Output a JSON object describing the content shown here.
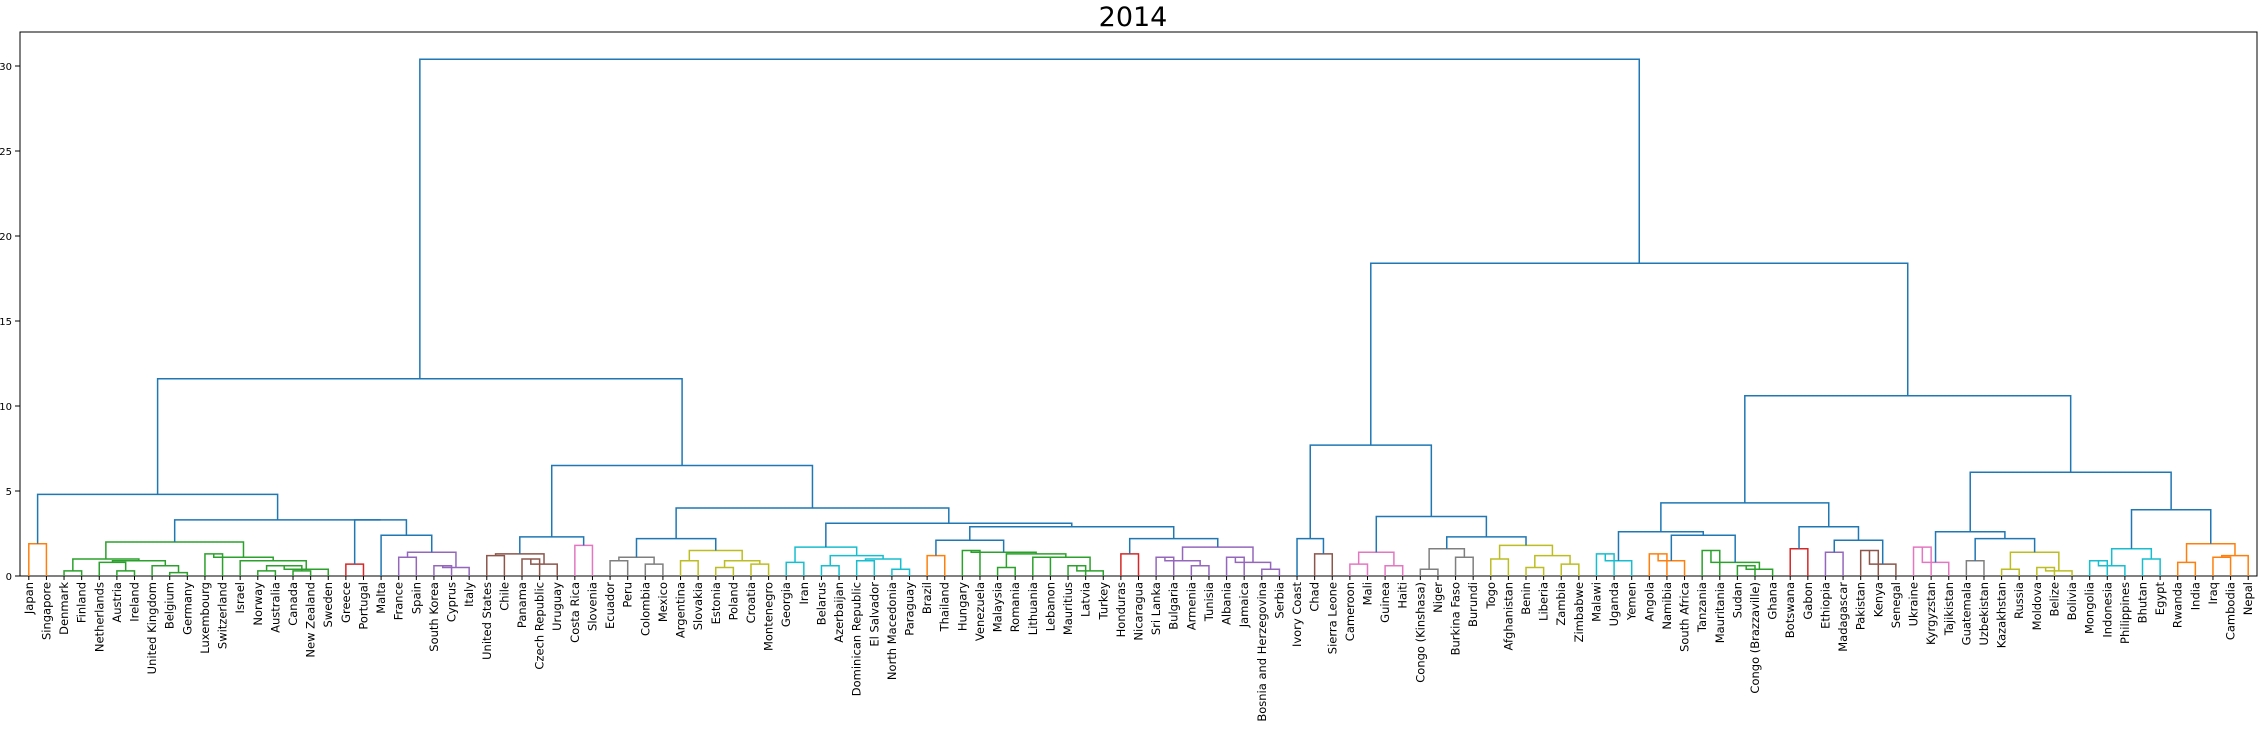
{
  "chart_data": {
    "type": "dendrogram",
    "title": "2014",
    "xlabel": "",
    "ylabel": "",
    "ylim": [
      0,
      32
    ],
    "yticks": [
      0,
      5,
      10,
      15,
      20,
      25,
      30
    ],
    "grid": false,
    "colors": {
      "above_threshold": "#1f77b4",
      "c1": "#ff7f0e",
      "c2": "#2ca02c",
      "c3": "#d62728",
      "c4": "#9467bd",
      "c5": "#8c564b",
      "c6": "#e377c2",
      "c7": "#7f7f7f",
      "c8": "#bcbd22",
      "c9": "#17becf"
    },
    "leaves": [
      "Japan",
      "Singapore",
      "Denmark",
      "Finland",
      "Netherlands",
      "Austria",
      "Ireland",
      "United Kingdom",
      "Belgium",
      "Germany",
      "Luxembourg",
      "Switzerland",
      "Israel",
      "Norway",
      "Australia",
      "Canada",
      "New Zealand",
      "Sweden",
      "Greece",
      "Portugal",
      "Malta",
      "France",
      "Spain",
      "South Korea",
      "Cyprus",
      "Italy",
      "United States",
      "Chile",
      "Panama",
      "Czech Republic",
      "Uruguay",
      "Costa Rica",
      "Slovenia",
      "Ecuador",
      "Peru",
      "Colombia",
      "Mexico",
      "Argentina",
      "Slovakia",
      "Estonia",
      "Poland",
      "Croatia",
      "Montenegro",
      "Georgia",
      "Iran",
      "Belarus",
      "Azerbaijan",
      "Dominican Republic",
      "El Salvador",
      "North Macedonia",
      "Paraguay",
      "Brazil",
      "Thailand",
      "Hungary",
      "Venezuela",
      "Malaysia",
      "Romania",
      "Lithuania",
      "Lebanon",
      "Mauritius",
      "Latvia",
      "Turkey",
      "Honduras",
      "Nicaragua",
      "Sri Lanka",
      "Bulgaria",
      "Armenia",
      "Tunisia",
      "Albania",
      "Jamaica",
      "Bosnia and Herzegovina",
      "Serbia",
      "Ivory Coast",
      "Chad",
      "Sierra Leone",
      "Cameroon",
      "Mali",
      "Guinea",
      "Haiti",
      "Congo (Kinshasa)",
      "Niger",
      "Burkina Faso",
      "Burundi",
      "Togo",
      "Afghanistan",
      "Benin",
      "Liberia",
      "Zambia",
      "Zimbabwe",
      "Malawi",
      "Uganda",
      "Yemen",
      "Angola",
      "Namibia",
      "South Africa",
      "Tanzania",
      "Mauritania",
      "Sudan",
      "Congo (Brazzaville)",
      "Ghana",
      "Botswana",
      "Gabon",
      "Ethiopia",
      "Madagascar",
      "Pakistan",
      "Kenya",
      "Senegal",
      "Ukraine",
      "Kyrgyzstan",
      "Tajikistan",
      "Guatemala",
      "Uzbekistan",
      "Kazakhstan",
      "Russia",
      "Moldova",
      "Belize",
      "Bolivia",
      "Mongolia",
      "Indonesia",
      "Philippines",
      "Bhutan",
      "Egypt",
      "Rwanda",
      "India",
      "Iraq",
      "Cambodia",
      "Nepal"
    ],
    "merges": [
      {
        "l": [
          0
        ],
        "r": [
          1
        ],
        "h": 1.9,
        "c": "c1"
      },
      {
        "l": [
          2
        ],
        "r": [
          3
        ],
        "h": 0.3,
        "c": "c2"
      },
      {
        "l": [
          5
        ],
        "r": [
          6
        ],
        "h": 0.3,
        "c": "c2"
      },
      {
        "l": [
          4
        ],
        "r": "p",
        "h": 0.8,
        "c": "c2"
      },
      {
        "l": [
          8
        ],
        "r": [
          9
        ],
        "h": 0.2,
        "c": "c2"
      },
      {
        "l": [
          7
        ],
        "r": "p",
        "h": 0.6,
        "c": "c2"
      },
      {
        "l": "p-2",
        "r": "p",
        "h": 0.9,
        "c": "c2"
      },
      {
        "l": "p-5",
        "r": "p",
        "h": 1.0,
        "c": "c2"
      },
      {
        "l": [
          10
        ],
        "r": [
          11
        ],
        "h": 1.3,
        "c": "c2"
      },
      {
        "l": [
          13
        ],
        "r": [
          14
        ],
        "h": 0.3,
        "c": "c2"
      },
      {
        "l": [
          15
        ],
        "r": [
          16
        ],
        "h": 0.3,
        "c": "c2"
      },
      {
        "l": "p-1",
        "r": "p",
        "h": 0.6,
        "c": "c2"
      },
      {
        "l": "p",
        "r": [
          17
        ],
        "h": 0.4,
        "c": "c2"
      },
      {
        "l": [
          12
        ],
        "r": "p",
        "h": 0.9,
        "c": "c2"
      },
      {
        "l": "p-5",
        "r": "p",
        "h": 1.1,
        "c": "c2"
      },
      {
        "l": "p-7",
        "r": "p",
        "h": 2.0,
        "c": "c2"
      },
      {
        "l": [
          18
        ],
        "r": [
          19
        ],
        "h": 0.7,
        "c": "c3"
      },
      {
        "l": [
          22
        ],
        "r": [
          23
        ],
        "h": 0.5,
        "c": "c4"
      },
      {
        "l": [
          24
        ],
        "r": [
          25
        ],
        "h": 0.4,
        "c": "c4"
      },
      {
        "l": "p-1",
        "r": "p",
        "h": 1.2,
        "c": "c4"
      },
      {
        "l": [
          21
        ],
        "r": "p",
        "h": 1.4,
        "c": "c4"
      },
      {
        "l": [
          20
        ],
        "r": "p",
        "h": 2.4
      },
      {
        "l": "p-4",
        "r": "p",
        "h": 3.3
      },
      {
        "l": "p-7",
        "r": "p",
        "h": 3.3
      },
      {
        "l": "p-16",
        "r": "p",
        "h": 4.8
      }
    ],
    "links": [
      {
        "x": [
          30,
          30,
          45,
          45
        ],
        "y": [
          0,
          1.9,
          1.9,
          0
        ],
        "c": "c1"
      },
      {
        "x": [
          70,
          70,
          85,
          85
        ],
        "y": [
          0,
          0.3,
          0.3,
          0
        ],
        "c": "c2"
      },
      {
        "x": [
          110,
          110,
          125,
          125
        ],
        "y": [
          0,
          0.3,
          0.3,
          0
        ],
        "c": "c2"
      },
      {
        "x": [
          100,
          100,
          117.5,
          117.5
        ],
        "y": [
          0,
          0.8,
          0.8,
          0.3
        ],
        "c": "c2"
      },
      {
        "x": [
          140,
          140,
          155,
          155
        ],
        "y": [
          0,
          0.2,
          0.2,
          0
        ],
        "c": "c2"
      },
      {
        "x": [
          130,
          130,
          147.5,
          147.5
        ],
        "y": [
          0,
          0.6,
          0.6,
          0.2
        ],
        "c": "c2"
      },
      {
        "x": [
          108.75,
          108.75,
          138.75,
          138.75
        ],
        "y": [
          0.8,
          0.8,
          0.9,
          0.6
        ],
        "c": "c2"
      },
      {
        "x": [
          77.5,
          77.5,
          123.75,
          123.75
        ],
        "y": [
          0.3,
          1.0,
          1.0,
          0.9
        ],
        "c": "c2"
      },
      {
        "x": [
          160,
          160,
          175,
          175
        ],
        "y": [
          0,
          1.3,
          1.3,
          0
        ],
        "c": "c2"
      },
      {
        "x": [
          190,
          190,
          205,
          205
        ],
        "y": [
          0,
          0.3,
          0.3,
          0
        ],
        "c": "c2"
      },
      {
        "x": [
          220,
          220,
          235,
          235
        ],
        "y": [
          0,
          0.3,
          0.3,
          0
        ],
        "c": "c2"
      },
      {
        "x": [
          197.5,
          197.5,
          227.5,
          227.5
        ],
        "y": [
          0.3,
          0.6,
          0.6,
          0.3
        ],
        "c": "c2"
      },
      {
        "x": [
          212.5,
          212.5,
          245,
          245
        ],
        "y": [
          0.6,
          0.4,
          0.4,
          0
        ],
        "c": "c2"
      },
      {
        "x": [
          180,
          180,
          228.75,
          228.75
        ],
        "y": [
          0,
          0.9,
          0.9,
          0.4
        ],
        "c": "c2"
      },
      {
        "x": [
          167.5,
          167.5,
          204.4,
          204.4
        ],
        "y": [
          1.3,
          1.1,
          1.1,
          0.9
        ],
        "c": "c2"
      },
      {
        "x": [
          100.6,
          100.6,
          185.9,
          185.9
        ],
        "y": [
          1.0,
          2.0,
          2.0,
          1.1
        ],
        "c": "c2"
      },
      {
        "x": [
          250,
          250,
          265,
          265
        ],
        "y": [
          0,
          0.7,
          0.7,
          0
        ],
        "c": "c3"
      }
    ],
    "y_units": "distance",
    "root_height": 30.4,
    "top_merges": [
      {
        "name": "left-cluster",
        "h": 11.6
      },
      {
        "name": "right-cluster",
        "h": 18.4
      },
      {
        "name": "root",
        "h": 30.4
      }
    ]
  }
}
